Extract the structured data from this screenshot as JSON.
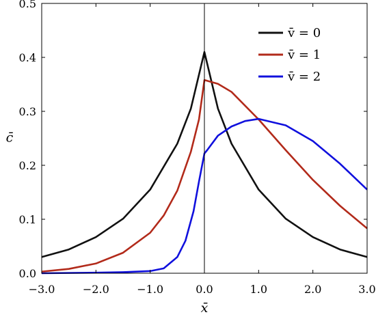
{
  "chart_data": {
    "type": "line",
    "xlabel": "x̄",
    "ylabel": "c̄",
    "xlim": [
      -3.0,
      3.0
    ],
    "ylim": [
      0.0,
      0.5
    ],
    "x_ticks": [
      "−3.0",
      "−2.0",
      "−1.0",
      "0.0",
      "1.0",
      "2.0",
      "3.0"
    ],
    "y_ticks": [
      "0.0",
      "0.1",
      "0.2",
      "0.3",
      "0.4",
      "0.5"
    ],
    "grid": false,
    "legend_position": "top-right",
    "series": [
      {
        "name": "v̄ = 0",
        "color": "#111111",
        "x": [
          -3.0,
          -2.5,
          -2.0,
          -1.5,
          -1.0,
          -0.5,
          -0.25,
          0.0,
          0.25,
          0.5,
          1.0,
          1.5,
          2.0,
          2.5,
          3.0
        ],
        "y": [
          0.03,
          0.044,
          0.067,
          0.101,
          0.155,
          0.24,
          0.305,
          0.41,
          0.305,
          0.24,
          0.155,
          0.101,
          0.067,
          0.044,
          0.03
        ]
      },
      {
        "name": "v̄ = 1",
        "color": "#b22a1a",
        "x": [
          -3.0,
          -2.5,
          -2.0,
          -1.5,
          -1.0,
          -0.75,
          -0.5,
          -0.25,
          -0.1,
          0.0,
          0.25,
          0.5,
          1.0,
          1.5,
          2.0,
          2.5,
          3.0
        ],
        "y": [
          0.003,
          0.008,
          0.018,
          0.038,
          0.075,
          0.107,
          0.153,
          0.225,
          0.285,
          0.358,
          0.351,
          0.336,
          0.285,
          0.228,
          0.173,
          0.125,
          0.083
        ]
      },
      {
        "name": "v̄ = 2",
        "color": "#1010dd",
        "x": [
          -3.0,
          -2.0,
          -1.5,
          -1.0,
          -0.75,
          -0.5,
          -0.35,
          -0.2,
          -0.1,
          0.0,
          0.05,
          0.25,
          0.5,
          0.75,
          1.0,
          1.5,
          2.0,
          2.5,
          3.0
        ],
        "y": [
          0.0,
          0.001,
          0.002,
          0.004,
          0.009,
          0.03,
          0.06,
          0.115,
          0.17,
          0.222,
          0.228,
          0.255,
          0.272,
          0.282,
          0.286,
          0.274,
          0.245,
          0.203,
          0.155
        ]
      }
    ]
  }
}
